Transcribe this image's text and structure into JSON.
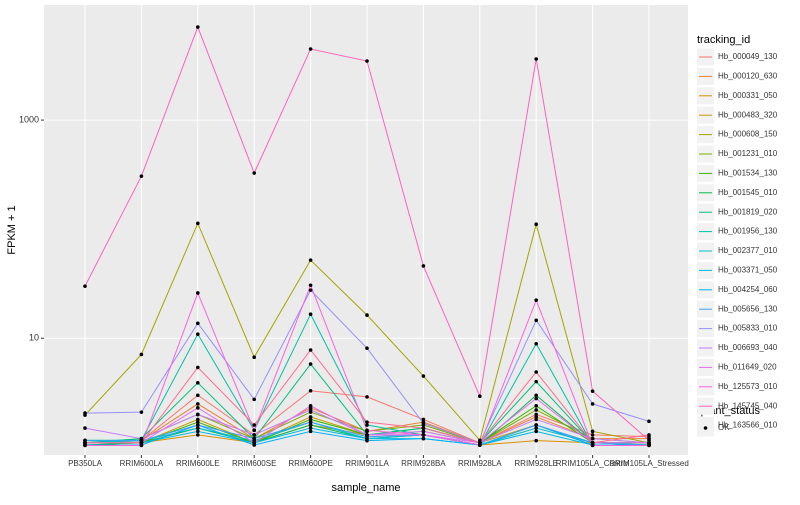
{
  "chart_data": {
    "type": "line",
    "log_scale": true,
    "grid": true,
    "x_label": "sample_name",
    "y_label": "FPKM + 1",
    "legend_title": "tracking_id",
    "status_legend_title": "quant_status",
    "status_labels": [
      "OK"
    ],
    "categories": [
      "PB350LA",
      "RRIM600LA",
      "RRIM600LE",
      "RRIM600SE",
      "RRIM600PE",
      "RRIM901LA",
      "RRIM928BA",
      "RRIM928LA",
      "RRIM928LE",
      "RRIM105LA_Control",
      "RRIM105LA_Stressed"
    ],
    "ylim": [
      0.85,
      11350
    ],
    "yticks": [
      10,
      1000
    ],
    "series": [
      {
        "name": "Hb_000049_130",
        "color": "#F8766D",
        "values": [
          1.1,
          1.15,
          3.0,
          1.3,
          3.3,
          2.9,
          1.8,
          1.1,
          2.0,
          1.3,
          1.25
        ]
      },
      {
        "name": "Hb_000120_630",
        "color": "#EA8331",
        "values": [
          1.1,
          1.15,
          2.5,
          1.2,
          2.3,
          1.4,
          1.7,
          1.1,
          1.9,
          1.2,
          1.2
        ]
      },
      {
        "name": "Hb_000331_050",
        "color": "#D89000",
        "values": [
          1.05,
          1.1,
          1.3,
          1.1,
          1.6,
          1.3,
          1.3,
          1.05,
          1.15,
          1.1,
          1.1
        ]
      },
      {
        "name": "Hb_000483_320",
        "color": "#C09B00",
        "values": [
          1.1,
          1.1,
          1.8,
          1.1,
          1.9,
          1.3,
          1.4,
          1.1,
          1.6,
          1.1,
          1.1
        ]
      },
      {
        "name": "Hb_000608_150",
        "color": "#A3A500",
        "values": [
          1.97,
          7.1,
          113,
          6.7,
          52,
          16.3,
          4.5,
          1.16,
          111,
          1.4,
          1.1
        ]
      },
      {
        "name": "Hb_001231_010",
        "color": "#7CAE00",
        "values": [
          1.1,
          1.2,
          2.0,
          1.2,
          2.1,
          1.4,
          1.6,
          1.1,
          2.2,
          1.2,
          1.1
        ]
      },
      {
        "name": "Hb_001534_130",
        "color": "#39B600",
        "values": [
          1.1,
          1.1,
          1.7,
          1.1,
          1.8,
          1.3,
          1.5,
          1.1,
          2.4,
          1.1,
          1.1
        ]
      },
      {
        "name": "Hb_001545_010",
        "color": "#00BB4E",
        "values": [
          1.05,
          1.1,
          1.5,
          1.1,
          1.6,
          1.2,
          1.3,
          1.05,
          3.0,
          1.1,
          1.05
        ]
      },
      {
        "name": "Hb_001819_020",
        "color": "#00BF7D",
        "values": [
          1.1,
          1.2,
          3.9,
          1.2,
          5.8,
          1.3,
          1.5,
          1.1,
          4.0,
          1.1,
          1.1
        ]
      },
      {
        "name": "Hb_001956_130",
        "color": "#00C1A3",
        "values": [
          1.16,
          1.16,
          10.9,
          1.43,
          16.6,
          1.6,
          1.3,
          1.05,
          8.9,
          1.05,
          1.05
        ]
      },
      {
        "name": "Hb_002377_010",
        "color": "#00BFC4",
        "values": [
          1.1,
          1.15,
          1.5,
          1.15,
          1.7,
          1.2,
          1.3,
          1.05,
          1.5,
          1.1,
          1.05
        ]
      },
      {
        "name": "Hb_003371_050",
        "color": "#00BAE0",
        "values": [
          1.1,
          1.1,
          1.4,
          1.1,
          1.5,
          1.2,
          1.2,
          1.05,
          1.4,
          1.05,
          1.05
        ]
      },
      {
        "name": "Hb_004254_060",
        "color": "#00B0F6",
        "values": [
          1.05,
          1.05,
          1.6,
          1.05,
          1.4,
          1.15,
          1.2,
          1.05,
          1.6,
          1.05,
          1.05
        ]
      },
      {
        "name": "Hb_005656_130",
        "color": "#35A2FF",
        "values": [
          1.15,
          1.15,
          1.6,
          1.2,
          1.7,
          1.25,
          1.3,
          1.05,
          1.6,
          1.1,
          1.05
        ]
      },
      {
        "name": "Hb_005833_010",
        "color": "#9590FF",
        "values": [
          2.06,
          2.1,
          13.7,
          2.75,
          27.6,
          8.1,
          1.66,
          1.1,
          14.6,
          2.5,
          1.73
        ]
      },
      {
        "name": "Hb_006693_040",
        "color": "#C77CFF",
        "values": [
          1.5,
          1.2,
          2.0,
          1.3,
          2.2,
          1.3,
          1.4,
          1.1,
          1.8,
          1.2,
          1.1
        ]
      },
      {
        "name": "Hb_011649_020",
        "color": "#E76BF3",
        "values": [
          1.1,
          1.1,
          2.3,
          1.1,
          2.4,
          1.3,
          1.3,
          1.1,
          2.8,
          1.1,
          1.1
        ]
      },
      {
        "name": "Hb_125573_010",
        "color": "#FA62DB",
        "values": [
          1.04,
          1.04,
          26,
          1.43,
          30.6,
          1.43,
          1.3,
          1.05,
          22.3,
          1.04,
          1.04
        ]
      },
      {
        "name": "Hb_145745_040",
        "color": "#FF62BC",
        "values": [
          30,
          306,
          7130,
          327,
          4480,
          3480,
          46,
          2.94,
          3630,
          3.27,
          1.16
        ]
      },
      {
        "name": "Hb_163566_010",
        "color": "#FF6C91",
        "values": [
          1.1,
          1.1,
          5.4,
          1.6,
          7.8,
          1.7,
          1.5,
          1.1,
          4.9,
          1.1,
          1.3
        ]
      }
    ]
  }
}
